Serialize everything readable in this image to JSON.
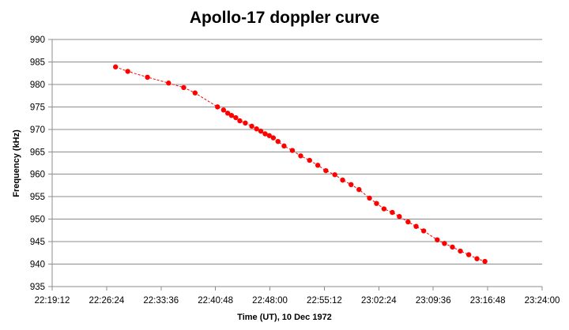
{
  "chart_data": {
    "type": "scatter",
    "title": "Apollo-17 doppler curve",
    "xlabel": "Time (UT),  10 Dec 1972",
    "ylabel": "Frequency (kHz)",
    "x_ticks": [
      "22:19:12",
      "22:26:24",
      "22:33:36",
      "22:40:48",
      "22:48:00",
      "22:55:12",
      "23:02:24",
      "23:09:36",
      "23:16:48",
      "23:24:00"
    ],
    "xlim": [
      "22:19:12",
      "23:24:00"
    ],
    "ylim": [
      935,
      990
    ],
    "y_ticks": [
      935,
      940,
      945,
      950,
      955,
      960,
      965,
      970,
      975,
      980,
      985,
      990
    ],
    "grid": "horizontal",
    "legend": "none",
    "marker_color": "#ff0000",
    "trend_line": "dashed",
    "series": [
      {
        "x": [
          "22:27:35",
          "22:29:12",
          "22:31:48",
          "22:34:36",
          "22:36:36",
          "22:38:06",
          "22:41:04",
          "22:41:52",
          "22:42:25",
          "22:42:55",
          "22:43:29",
          "22:44:01",
          "22:44:45",
          "22:45:36",
          "22:46:14",
          "22:46:48",
          "22:47:22",
          "22:47:55",
          "22:48:27",
          "22:49:04",
          "22:49:52",
          "22:50:58",
          "22:52:04",
          "22:53:15",
          "22:54:20",
          "22:55:24",
          "22:56:35",
          "22:57:37",
          "22:58:44",
          "22:59:47",
          "23:01:10",
          "23:02:06",
          "23:03:05",
          "23:04:11",
          "23:05:07",
          "23:06:16",
          "23:07:20",
          "23:08:20",
          "23:10:08",
          "23:11:05",
          "23:12:08",
          "23:13:11",
          "23:14:18",
          "23:15:23",
          "23:16:26"
        ],
        "y": [
          983.9,
          982.9,
          981.6,
          980.3,
          979.3,
          978.1,
          975.0,
          974.3,
          973.6,
          973.1,
          972.6,
          971.9,
          971.4,
          970.7,
          970.1,
          969.6,
          969.0,
          968.6,
          968.1,
          967.3,
          966.3,
          965.3,
          964.1,
          963.1,
          962.0,
          960.8,
          959.9,
          958.7,
          957.7,
          956.6,
          954.7,
          953.5,
          952.3,
          951.5,
          950.6,
          949.4,
          948.4,
          947.4,
          945.4,
          944.6,
          943.8,
          942.9,
          942.1,
          941.2,
          940.6
        ]
      }
    ]
  }
}
